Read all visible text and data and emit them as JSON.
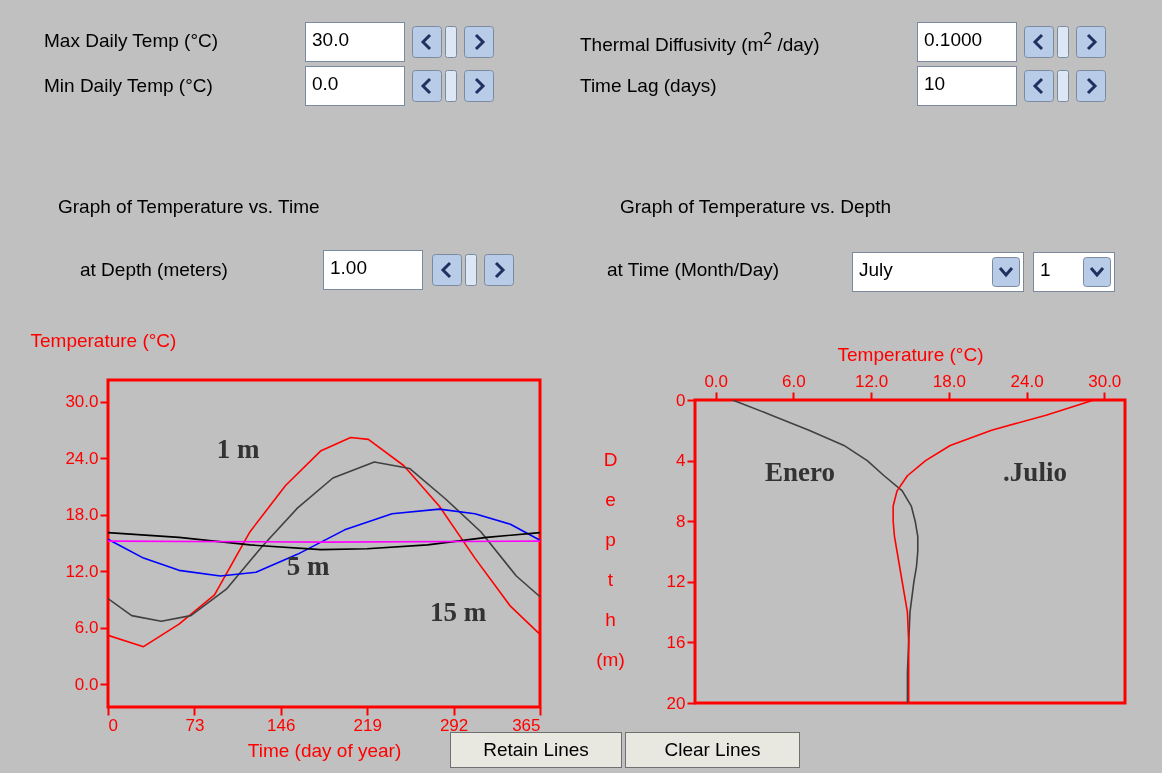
{
  "chart_data": [
    {
      "type": "other",
      "annotations": [
        "Max Daily Temp (°C)",
        "30.0",
        "Min Daily Temp (°C)",
        "0.0",
        "Thermal Diffusivity (m$^{2}$ /day)",
        "0.1000",
        "Time Lag (days)",
        "10",
        "Graph of Temperature vs. Time",
        "at Depth (meters)",
        "1.00",
        "Graph of Temperature vs. Depth",
        "at Time (Month/Day)",
        "July",
        "1",
        "Retain Lines",
        "Clear Lines"
      ]
    },
    {
      "type": "line",
      "xlabel": "Time (day of year)",
      "ylabel": "Temperature (°C)",
      "xlim": [
        0,
        365
      ],
      "ylim": [
        -2.4,
        32.3
      ],
      "xticks": [
        0,
        73,
        146,
        219,
        292,
        365
      ],
      "yticks": [
        {
          "value": 0,
          "label": "0.0"
        },
        {
          "value": 6,
          "label": "6.0"
        },
        {
          "value": 12,
          "label": "12.0"
        },
        {
          "value": 18,
          "label": "18.0"
        },
        {
          "value": 24,
          "label": "24.0"
        },
        {
          "value": 30,
          "label": "30.0"
        }
      ],
      "line_style": "solid",
      "marker": "none",
      "series": [
        {
          "color": "#ff0000",
          "x": [
            0,
            30,
            60,
            90,
            120,
            150,
            180,
            205,
            220,
            250,
            280,
            310,
            340,
            365
          ],
          "values": [
            5.2,
            4.0,
            6.4,
            9.5,
            16.2,
            21.1,
            24.8,
            26.2,
            26.0,
            23.2,
            18.9,
            13.4,
            8.3,
            5.3
          ]
        },
        {
          "color": "#404040",
          "x": [
            0,
            20,
            45,
            70,
            100,
            130,
            160,
            190,
            225,
            255,
            285,
            315,
            345,
            365
          ],
          "values": [
            9.1,
            7.3,
            6.7,
            7.3,
            10.1,
            14.6,
            18.7,
            21.9,
            23.6,
            22.9,
            19.7,
            16.2,
            11.5,
            9.3
          ]
        },
        {
          "color": "#0000ff",
          "x": [
            0,
            30,
            60,
            95,
            125,
            160,
            200,
            240,
            280,
            310,
            340,
            365
          ],
          "values": [
            15.4,
            13.4,
            12.1,
            11.5,
            11.9,
            13.8,
            16.4,
            18.1,
            18.6,
            18.1,
            17.0,
            15.3
          ]
        },
        {
          "color": "#000000",
          "x": [
            0,
            60,
            120,
            180,
            219,
            270,
            320,
            365
          ],
          "values": [
            16.1,
            15.6,
            14.8,
            14.3,
            14.4,
            14.8,
            15.6,
            16.1
          ]
        },
        {
          "color": "#ff00ff",
          "x": [
            0,
            182,
            365
          ],
          "values": [
            15.2,
            15.1,
            15.2
          ]
        }
      ],
      "annotations": [
        "1 m",
        "5 m",
        "15 m"
      ]
    },
    {
      "type": "line",
      "xlabel": "Temperature (°C)",
      "ylabel": "Depth (m)",
      "xlim": [
        -1.6,
        31.6
      ],
      "ylim": [
        20,
        0
      ],
      "xticks": [
        {
          "value": 0,
          "label": "0.0"
        },
        {
          "value": 6,
          "label": "6.0"
        },
        {
          "value": 12,
          "label": "12.0"
        },
        {
          "value": 18,
          "label": "18.0"
        },
        {
          "value": 24,
          "label": "24.0"
        },
        {
          "value": 30,
          "label": "30.0"
        }
      ],
      "yticks": [
        0,
        4,
        8,
        12,
        16,
        20
      ],
      "line_style": "solid",
      "marker": "none",
      "series": [
        {
          "color": "#404040",
          "x": [
            1.3,
            4.3,
            7.2,
            9.9,
            11.7,
            13.0,
            14.4,
            15.1,
            15.4,
            15.6,
            15.6,
            15.5,
            15.3,
            15.0,
            14.9,
            14.8,
            14.8
          ],
          "values": [
            0,
            1,
            2,
            3,
            4,
            5,
            6,
            7,
            8,
            9,
            10,
            11,
            12,
            14,
            16,
            18,
            20
          ]
        },
        {
          "color": "#ff0000",
          "x": [
            29.2,
            25.5,
            21.3,
            18.1,
            16.2,
            14.8,
            14.0,
            13.7,
            13.7,
            13.8,
            14.0,
            14.4,
            14.8,
            14.9,
            14.9
          ],
          "values": [
            0,
            1,
            2,
            3,
            4,
            5,
            6,
            7,
            8,
            9,
            10,
            12,
            14,
            16,
            20
          ]
        }
      ],
      "annotations": [
        "Enero",
        ".Julio"
      ]
    }
  ]
}
